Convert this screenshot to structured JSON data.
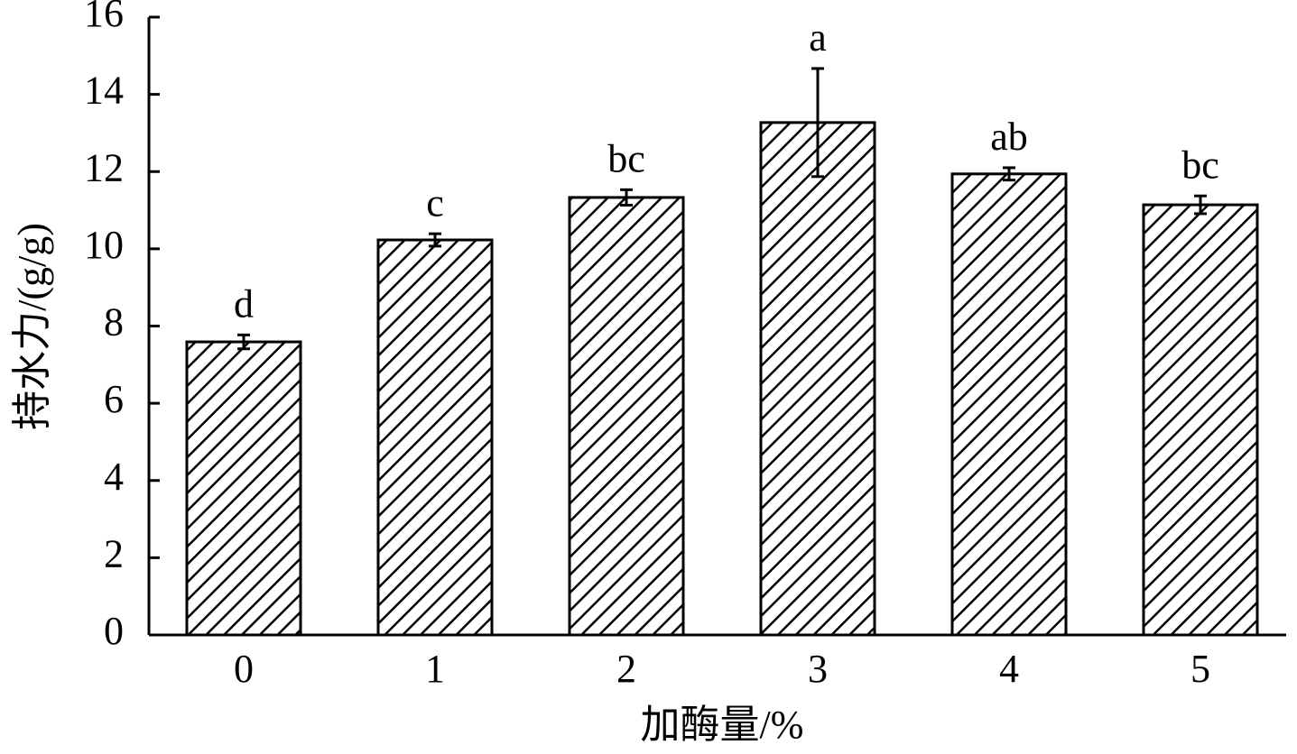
{
  "chart_data": {
    "type": "bar",
    "x_label": "加酶量/%",
    "y_label": "持水力/(g/g)",
    "categories": [
      "0",
      "1",
      "2",
      "3",
      "4",
      "5"
    ],
    "values": [
      7.59,
      10.23,
      11.33,
      13.27,
      11.94,
      11.14
    ],
    "errors": [
      0.18,
      0.16,
      0.2,
      1.4,
      0.16,
      0.23
    ],
    "significance_labels": [
      "d",
      "c",
      "bc",
      "a",
      "ab",
      "bc"
    ],
    "color": "#000000",
    "hatch": true,
    "ylim": [
      0,
      16
    ],
    "yticks": [
      0,
      2,
      4,
      6,
      8,
      10,
      12,
      14,
      16
    ],
    "grid": false
  }
}
